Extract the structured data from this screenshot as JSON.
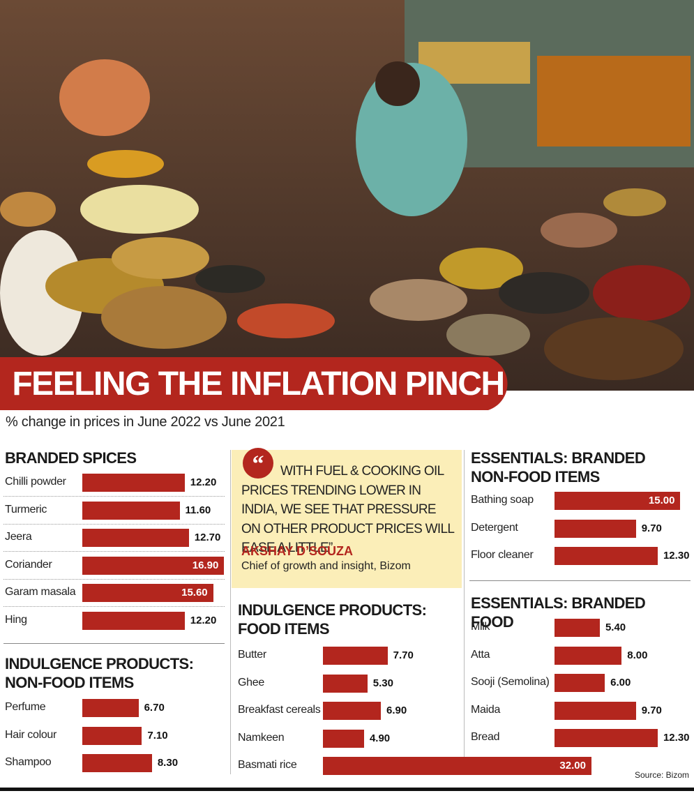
{
  "header": {
    "title": "FEELING THE INFLATION PINCH",
    "subtitle": "% change in prices in June 2022 vs June 2021"
  },
  "quote": {
    "text": "WITH FUEL & COOKING OIL PRICES TRENDING LOWER IN INDIA, WE SEE THAT PRESSURE ON OTHER PRODUCT PRICES WILL EASE A LITTLE”",
    "author": "AKSHAY D’SOUZA",
    "role": "Chief of growth and insight, Bizom"
  },
  "source": "Source: Bizom",
  "chart_data": [
    {
      "type": "bar",
      "title": "BRANDED SPICES",
      "color": "#b3261e",
      "categories": [
        "Chilli powder",
        "Turmeric",
        "Jeera",
        "Coriander",
        "Garam masala",
        "Hing"
      ],
      "values": [
        12.2,
        11.6,
        12.7,
        16.9,
        15.6,
        12.2
      ],
      "value_labels": [
        "12.20",
        "11.60",
        "12.70",
        "16.90",
        "15.60",
        "12.20"
      ]
    },
    {
      "type": "bar",
      "title": "INDULGENCE PRODUCTS: NON-FOOD ITEMS",
      "color": "#b3261e",
      "categories": [
        "Perfume",
        "Hair colour",
        "Shampoo"
      ],
      "values": [
        6.7,
        7.1,
        8.3
      ],
      "value_labels": [
        "6.70",
        "7.10",
        "8.30"
      ]
    },
    {
      "type": "bar",
      "title": "INDULGENCE PRODUCTS: FOOD ITEMS",
      "color": "#b3261e",
      "categories": [
        "Butter",
        "Ghee",
        "Breakfast cereals",
        "Namkeen",
        "Basmati rice"
      ],
      "values": [
        7.7,
        5.3,
        6.9,
        4.9,
        32
      ],
      "value_labels": [
        "7.70",
        "5.30",
        "6.90",
        "4.90",
        "32.00"
      ]
    },
    {
      "type": "bar",
      "title": "ESSENTIALS: BRANDED NON-FOOD ITEMS",
      "color": "#b3261e",
      "categories": [
        "Bathing soap",
        "Detergent",
        "Floor cleaner"
      ],
      "values": [
        15,
        9.7,
        12.3
      ],
      "value_labels": [
        "15.00",
        "9.70",
        "12.30"
      ]
    },
    {
      "type": "bar",
      "title": "ESSENTIALS: BRANDED FOOD",
      "color": "#b3261e",
      "categories": [
        "Milk",
        "Atta",
        "Sooji (Semolina)",
        "Maida",
        "Bread"
      ],
      "values": [
        5.4,
        8,
        6,
        9.7,
        12.3
      ],
      "value_labels": [
        "5.40",
        "8.00",
        "6.00",
        "9.70",
        "12.30"
      ]
    }
  ]
}
